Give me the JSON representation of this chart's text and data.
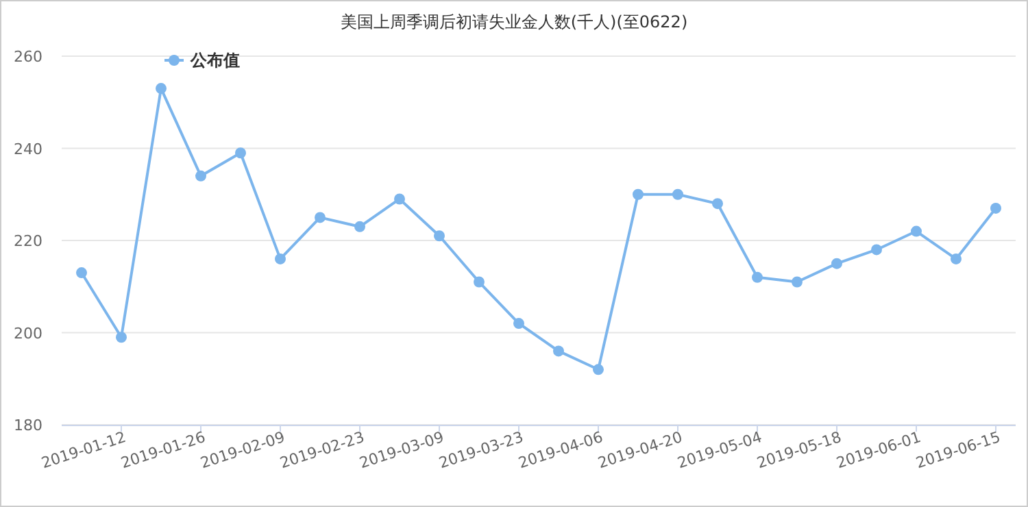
{
  "chart_data": {
    "type": "line",
    "title": "美国上周季调后初请失业金人数(千人)(至0622)",
    "categories": [
      null,
      "2019-01-12",
      null,
      "2019-01-26",
      null,
      "2019-02-09",
      null,
      "2019-02-23",
      null,
      "2019-03-09",
      null,
      "2019-03-23",
      null,
      "2019-04-06",
      null,
      "2019-04-20",
      null,
      "2019-05-04",
      null,
      "2019-05-18",
      null,
      "2019-06-01",
      null,
      "2019-06-15"
    ],
    "series": [
      {
        "name": "公布值",
        "color": "#7cb5ec",
        "values": [
          213,
          199,
          253,
          234,
          239,
          216,
          225,
          223,
          229,
          221,
          211,
          202,
          196,
          192,
          230,
          230,
          228,
          212,
          211,
          215,
          218,
          222,
          216,
          227
        ]
      }
    ],
    "ylim": [
      180,
      260
    ],
    "yticks": [
      180,
      200,
      220,
      240,
      260
    ],
    "grid": "y",
    "legend": "top left",
    "marker": "circle",
    "line_style": "solid"
  }
}
